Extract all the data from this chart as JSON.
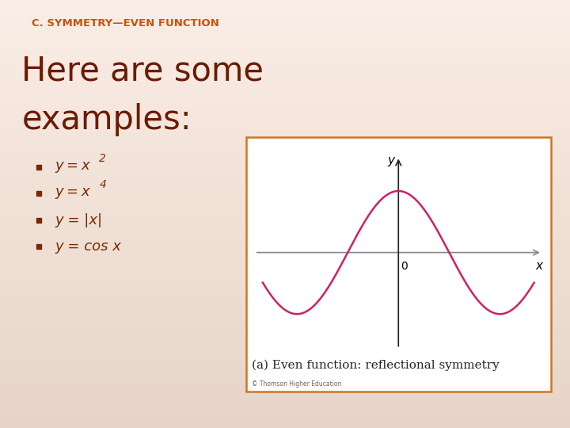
{
  "title": "C. SYMMETRY—EVEN FUNCTION",
  "title_color": "#C8520A",
  "title_fontsize": 9.5,
  "heading_line1": "Here are some",
  "heading_line2": "examples:",
  "heading_color": "#6B1A00",
  "heading_fontsize": 30,
  "bullet_color": "#7B2800",
  "bullet_fontsize": 13,
  "bullets": [
    "y = x²",
    "y = x⁴",
    "y = |x|",
    "y = cos x"
  ],
  "bg_color": "#F5D8C0",
  "bg_color_top": "#FAF0E8",
  "graph_border_color": "#CC7722",
  "curve_color": "#CC2266",
  "xaxis_color": "#888888",
  "yaxis_color": "#222222",
  "caption": "(a) Even function: reflectional symmetry",
  "caption_fontsize": 11,
  "caption_color": "#222222",
  "copyright": "© Thomson Higher Education",
  "copyright_fontsize": 5.5,
  "copyright_color": "#666666"
}
